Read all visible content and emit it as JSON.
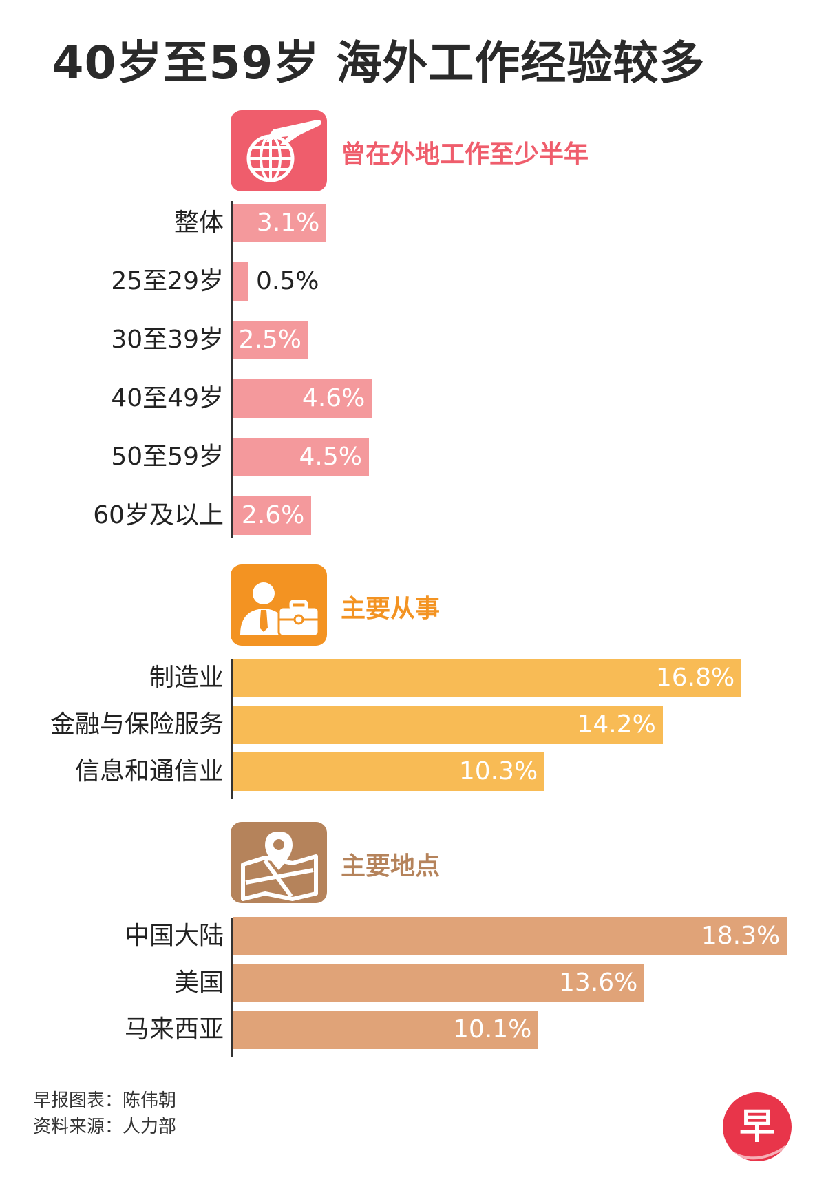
{
  "title": "40岁至59岁 海外工作经验较多",
  "colors": {
    "red": "#ef5d6c",
    "pink_bar": "#f4999c",
    "orange": "#f39322",
    "yellow_bar": "#f8bb55",
    "brown": "#b5835b",
    "tan_bar": "#e0a378"
  },
  "sections": [
    {
      "title": "曾在外地工作至少半年",
      "icon": "globe-plane-icon"
    },
    {
      "title": "主要从事",
      "icon": "businessman-briefcase-icon"
    },
    {
      "title": "主要地点",
      "icon": "map-pin-icon"
    }
  ],
  "chart_data": [
    {
      "type": "bar",
      "orientation": "horizontal",
      "title": "曾在外地工作至少半年",
      "categories": [
        "整体",
        "25至29岁",
        "30至39岁",
        "40至49岁",
        "50至59岁",
        "60岁及以上"
      ],
      "values": [
        3.1,
        0.5,
        2.5,
        4.6,
        4.5,
        2.6
      ],
      "labels": [
        "3.1%",
        "0.5%",
        "2.5%",
        "4.6%",
        "4.5%",
        "2.6%"
      ],
      "unit": "%"
    },
    {
      "type": "bar",
      "orientation": "horizontal",
      "title": "主要从事",
      "categories": [
        "制造业",
        "金融与保险服务",
        "信息和通信业"
      ],
      "values": [
        16.8,
        14.2,
        10.3
      ],
      "labels": [
        "16.8%",
        "14.2%",
        "10.3%"
      ],
      "unit": "%"
    },
    {
      "type": "bar",
      "orientation": "horizontal",
      "title": "主要地点",
      "categories": [
        "中国大陆",
        "美国",
        "马来西亚"
      ],
      "values": [
        18.3,
        13.6,
        10.1
      ],
      "labels": [
        "18.3%",
        "13.6%",
        "10.1%"
      ],
      "unit": "%"
    }
  ],
  "footer": {
    "credit": "早报图表：陈伟朝",
    "source": "资料来源：人力部"
  },
  "logo": {
    "glyph": "早"
  }
}
